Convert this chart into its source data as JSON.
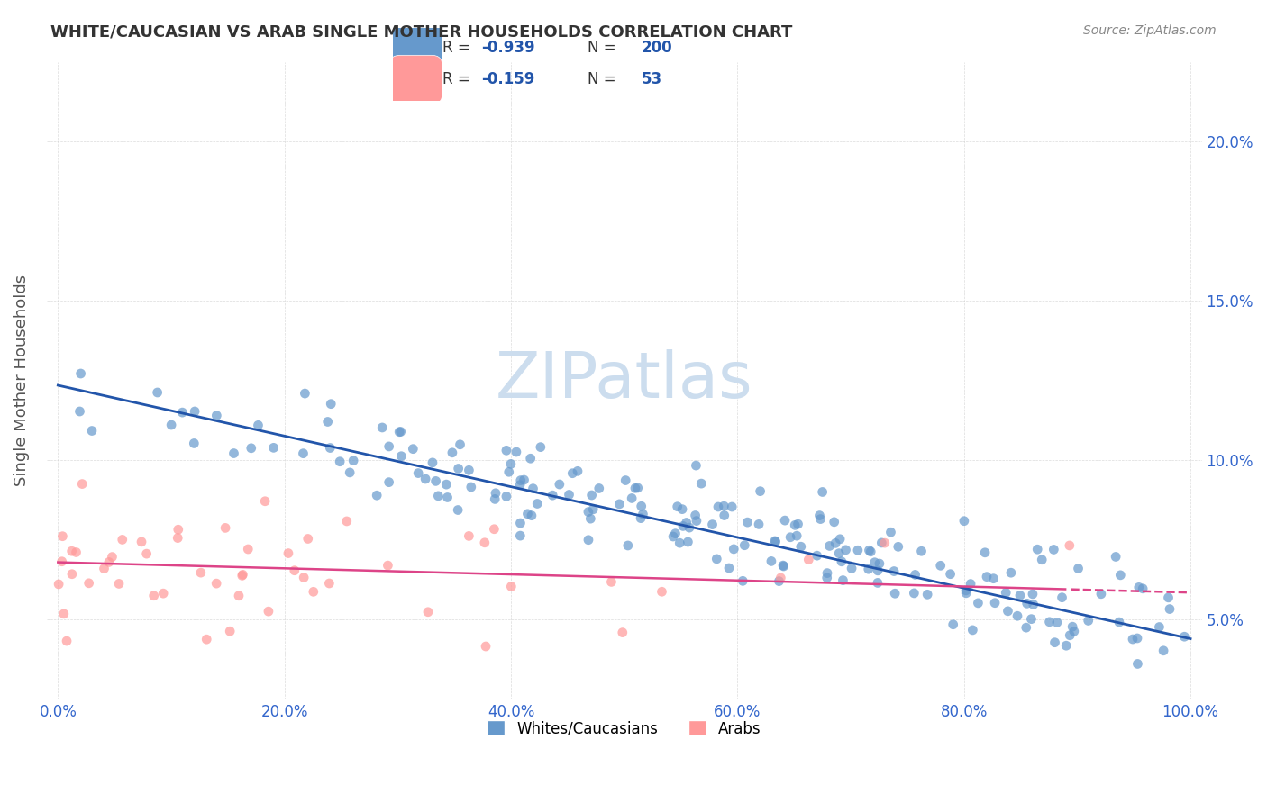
{
  "title": "WHITE/CAUCASIAN VS ARAB SINGLE MOTHER HOUSEHOLDS CORRELATION CHART",
  "source": "Source: ZipAtlas.com",
  "xlabel": "",
  "ylabel": "Single Mother Households",
  "blue_R": -0.939,
  "blue_N": 200,
  "pink_R": -0.159,
  "pink_N": 53,
  "blue_color": "#6699CC",
  "pink_color": "#FF9999",
  "blue_line_color": "#2255AA",
  "pink_line_color": "#DD4488",
  "title_color": "#333333",
  "axis_label_color": "#555555",
  "tick_color": "#3366CC",
  "watermark_color": "#CCDDEE",
  "legend_label_blue": "Whites/Caucasians",
  "legend_label_pink": "Arabs",
  "blue_seed": 42,
  "pink_seed": 7,
  "blue_intercept": 0.1235,
  "blue_slope": -0.0795,
  "pink_intercept": 0.068,
  "pink_slope": -0.0095
}
